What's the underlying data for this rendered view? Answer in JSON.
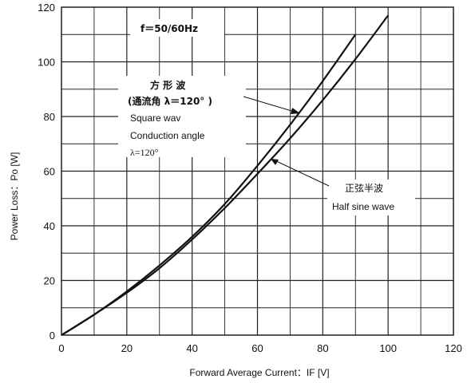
{
  "chart_data": {
    "type": "line",
    "xlabel": "Forward Average Current：IF [V]",
    "ylabel": "Power Loss：Po [W]",
    "xlim": [
      0,
      120
    ],
    "ylim": [
      0,
      120
    ],
    "x_ticks": [
      0,
      20,
      40,
      60,
      80,
      100,
      120
    ],
    "y_ticks": [
      0,
      20,
      40,
      60,
      80,
      100,
      120
    ],
    "grid": true,
    "series": [
      {
        "name": "方 形 波 (通流角 λ＝120°) Square wav Conduction angle λ=120°",
        "x": [
          0,
          10,
          20,
          30,
          40,
          50,
          60,
          70,
          80,
          90
        ],
        "y": [
          0,
          7.5,
          16,
          25.5,
          36,
          48,
          62,
          77,
          93,
          110
        ]
      },
      {
        "name": "正弦半波 Half sine wave",
        "x": [
          0,
          10,
          20,
          30,
          40,
          50,
          60,
          70,
          80,
          90,
          100
        ],
        "y": [
          0,
          7.5,
          15.5,
          24.5,
          35,
          46.5,
          59,
          72,
          86,
          101,
          117
        ]
      }
    ],
    "annotations": {
      "frequency": "f＝50/60Hz",
      "square": [
        "方  形  波",
        "(通流角 λ＝120° )",
        "Square wav",
        "Conduction angle",
        "λ=120°"
      ],
      "sine": [
        "正弦半波",
        "Half sine wave"
      ]
    }
  }
}
